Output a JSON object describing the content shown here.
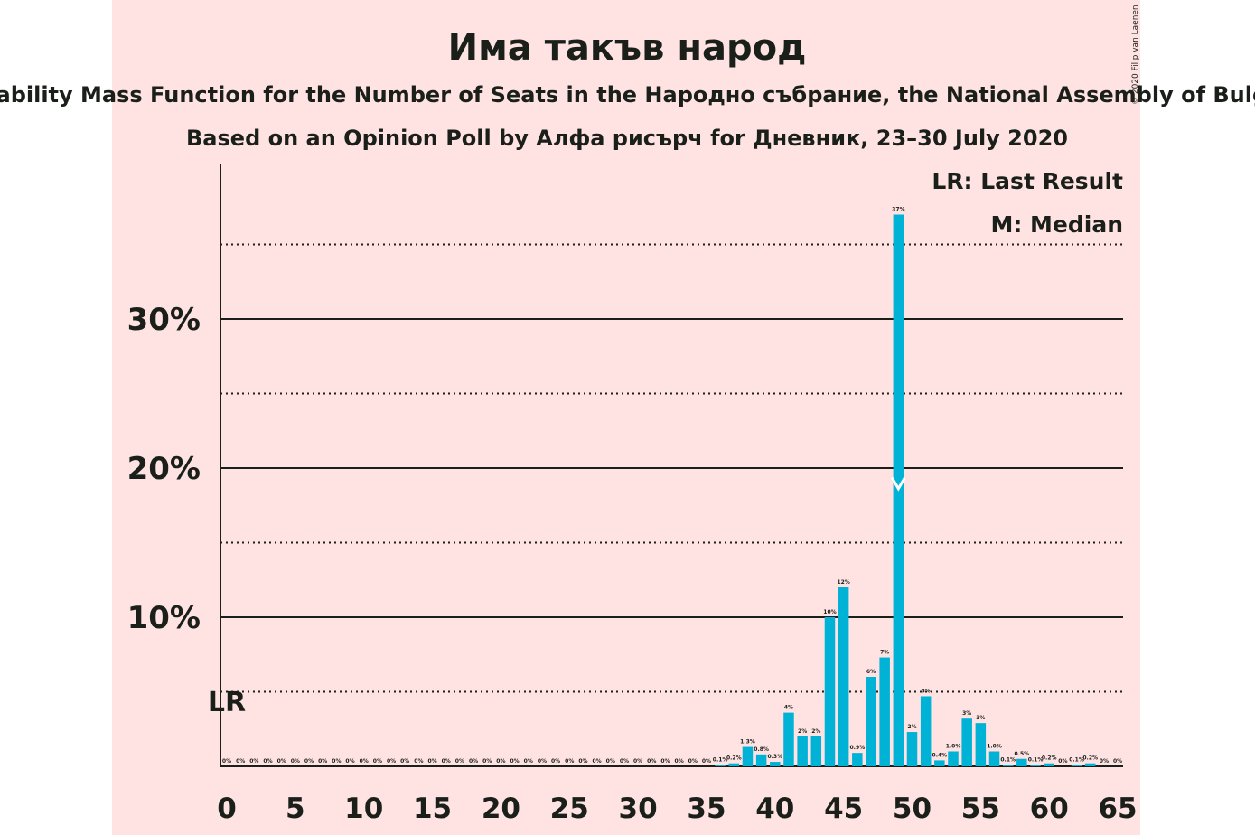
{
  "copyright": "© 2020 Filip van Laenen",
  "chart_data": {
    "type": "bar",
    "title": "Има такъв народ",
    "subtitle": "Probability Mass Function for the Number of Seats in the Народно събрание, the National Assembly of Bulgaria",
    "subtitle2": "Based on an Opinion Poll by Алфа рисърч for Дневник, 23–30 July 2020",
    "legend": [
      "LR: Last Result",
      "M: Median"
    ],
    "last_result_label": "LR",
    "last_result": 0,
    "median": 49,
    "x": [
      0,
      1,
      2,
      3,
      4,
      5,
      6,
      7,
      8,
      9,
      10,
      11,
      12,
      13,
      14,
      15,
      16,
      17,
      18,
      19,
      20,
      21,
      22,
      23,
      24,
      25,
      26,
      27,
      28,
      29,
      30,
      31,
      32,
      33,
      34,
      35,
      36,
      37,
      38,
      39,
      40,
      41,
      42,
      43,
      44,
      45,
      46,
      47,
      48,
      49,
      50,
      51,
      52,
      53,
      54,
      55,
      56,
      57,
      58,
      59,
      60,
      61,
      62,
      63,
      64,
      65
    ],
    "values": [
      0,
      0,
      0,
      0,
      0,
      0,
      0,
      0,
      0,
      0,
      0,
      0,
      0,
      0,
      0,
      0,
      0,
      0,
      0,
      0,
      0,
      0,
      0,
      0,
      0,
      0,
      0,
      0,
      0,
      0,
      0,
      0,
      0,
      0,
      0,
      0,
      0.1,
      0.2,
      1.3,
      0.8,
      0.3,
      3.6,
      2.0,
      2.0,
      10.0,
      12.0,
      0.9,
      6.0,
      7.3,
      37.0,
      2.3,
      4.7,
      0.4,
      1.0,
      3.2,
      2.9,
      1.0,
      0.1,
      0.5,
      0.1,
      0.2,
      0,
      0.1,
      0.2,
      0,
      0
    ],
    "labels": [
      "0%",
      "0%",
      "0%",
      "0%",
      "0%",
      "0%",
      "0%",
      "0%",
      "0%",
      "0%",
      "0%",
      "0%",
      "0%",
      "0%",
      "0%",
      "0%",
      "0%",
      "0%",
      "0%",
      "0%",
      "0%",
      "0%",
      "0%",
      "0%",
      "0%",
      "0%",
      "0%",
      "0%",
      "0%",
      "0%",
      "0%",
      "0%",
      "0%",
      "0%",
      "0%",
      "0%",
      "0.1%",
      "0.2%",
      "1.3%",
      "0.8%",
      "0.3%",
      "4%",
      "2%",
      "2%",
      "10%",
      "12%",
      "0.9%",
      "6%",
      "7%",
      "37%",
      "2%",
      "5%",
      "0.4%",
      "1.0%",
      "3%",
      "3%",
      "1.0%",
      "0.1%",
      "0.5%",
      "0.1%",
      "0.2%",
      "0%",
      "0.1%",
      "0.2%",
      "0%",
      "0%"
    ],
    "x_ticks": [
      0,
      5,
      10,
      15,
      20,
      25,
      30,
      35,
      40,
      45,
      50,
      55,
      60,
      65
    ],
    "y_ticks": [
      10,
      20,
      30
    ],
    "y_tick_labels": [
      "10%",
      "20%",
      "30%"
    ],
    "y_minor_gridlines": [
      5,
      15,
      25,
      35
    ],
    "ylim": [
      0,
      40
    ],
    "xlim": [
      0,
      65
    ],
    "colors": {
      "bar": "#00b2d6",
      "background": "#ffe3e3",
      "text": "#1a1f1a"
    }
  }
}
